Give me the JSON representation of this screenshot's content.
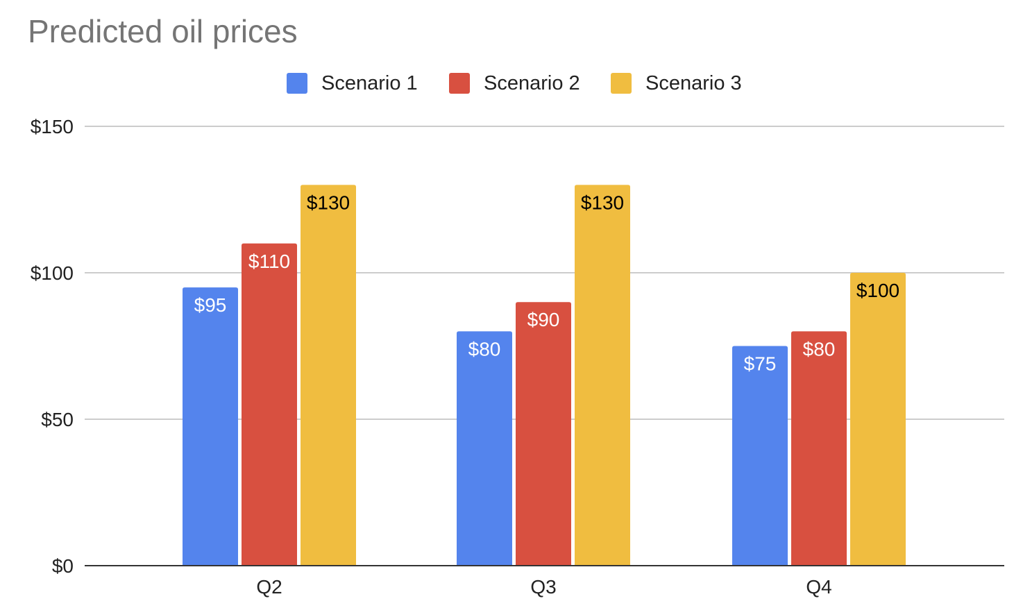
{
  "chart_data": {
    "type": "bar",
    "title": "Predicted oil prices",
    "categories": [
      "Q2",
      "Q3",
      "Q4"
    ],
    "series": [
      {
        "name": "Scenario 1",
        "color": "#5484ed",
        "values": [
          95,
          80,
          75
        ],
        "labels": [
          "$95",
          "$80",
          "$75"
        ],
        "label_color": "#ffffff"
      },
      {
        "name": "Scenario 2",
        "color": "#d85040",
        "values": [
          110,
          90,
          80
        ],
        "labels": [
          "$110",
          "$90",
          "$80"
        ],
        "label_color": "#ffffff"
      },
      {
        "name": "Scenario 3",
        "color": "#f0bd40",
        "values": [
          130,
          130,
          100
        ],
        "labels": [
          "$130",
          "$130",
          "$100"
        ],
        "label_color": "#000000"
      }
    ],
    "ylim": [
      0,
      150
    ],
    "yticks": [
      0,
      50,
      100,
      150
    ],
    "ytick_labels": [
      "$0",
      "$50",
      "$100",
      "$150"
    ],
    "xlabel": "",
    "ylabel": "",
    "grid": true,
    "legend_position": "top-center"
  }
}
